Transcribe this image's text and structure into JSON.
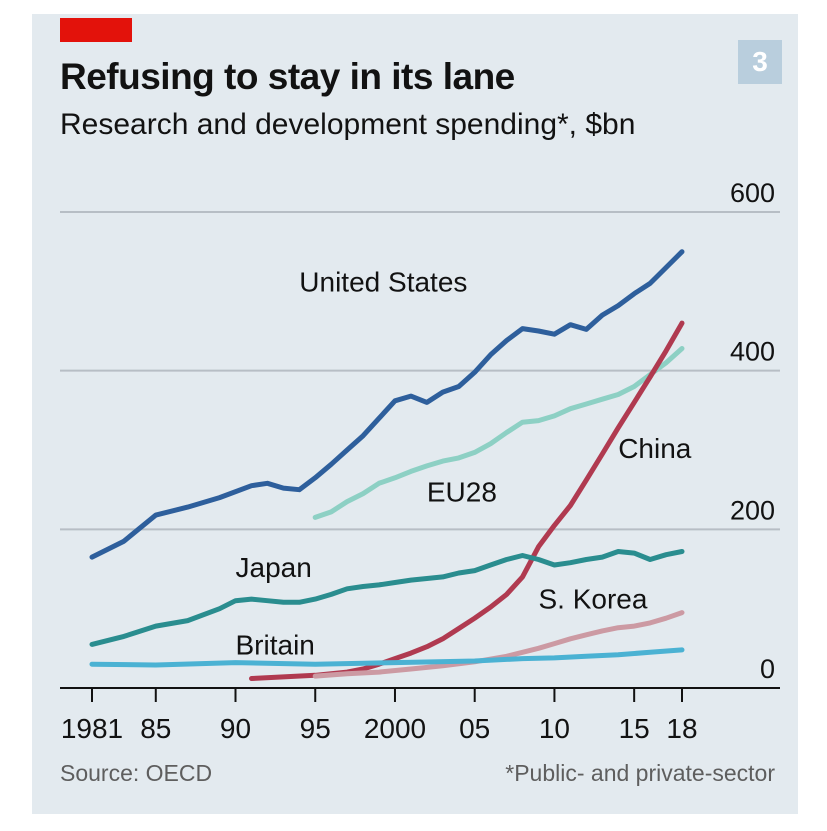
{
  "header": {
    "title": "Refusing to stay in its lane",
    "subtitle": "Research and development spending*, $bn",
    "badge": "3"
  },
  "footer": {
    "source": "Source: OECD",
    "note": "*Public- and private-sector"
  },
  "colors": {
    "background": "#e3eaef",
    "accent": "#e3120b",
    "gridline": "#b7bec5",
    "axis": "#121212"
  },
  "chart_data": {
    "type": "line",
    "title": "Refusing to stay in its lane",
    "subtitle": "Research and development spending*, $bn",
    "xlim": [
      1981,
      2018
    ],
    "ylim": [
      0,
      600
    ],
    "x_tick_values": [
      1981,
      1985,
      1990,
      1995,
      2000,
      2005,
      2010,
      2015,
      2018
    ],
    "x_tick_labels": [
      "1981",
      "85",
      "90",
      "95",
      "2000",
      "05",
      "10",
      "15",
      "18"
    ],
    "y_ticks": [
      0,
      200,
      400,
      600
    ],
    "grid": true,
    "y_axis_side": "right",
    "series": [
      {
        "name": "United States",
        "color": "#2e5f9c",
        "label_anchor": [
          1994,
          500
        ],
        "points": [
          [
            1981,
            165
          ],
          [
            1983,
            185
          ],
          [
            1985,
            218
          ],
          [
            1987,
            228
          ],
          [
            1989,
            240
          ],
          [
            1991,
            255
          ],
          [
            1992,
            258
          ],
          [
            1993,
            252
          ],
          [
            1994,
            250
          ],
          [
            1995,
            265
          ],
          [
            1996,
            282
          ],
          [
            1997,
            300
          ],
          [
            1998,
            318
          ],
          [
            1999,
            340
          ],
          [
            2000,
            362
          ],
          [
            2001,
            368
          ],
          [
            2002,
            360
          ],
          [
            2003,
            373
          ],
          [
            2004,
            380
          ],
          [
            2005,
            398
          ],
          [
            2006,
            420
          ],
          [
            2007,
            438
          ],
          [
            2008,
            453
          ],
          [
            2009,
            450
          ],
          [
            2010,
            446
          ],
          [
            2011,
            458
          ],
          [
            2012,
            452
          ],
          [
            2013,
            470
          ],
          [
            2014,
            482
          ],
          [
            2015,
            497
          ],
          [
            2016,
            510
          ],
          [
            2017,
            530
          ],
          [
            2018,
            550
          ]
        ]
      },
      {
        "name": "EU28",
        "color": "#8dd0c4",
        "label_anchor": [
          2002,
          235
        ],
        "points": [
          [
            1995,
            215
          ],
          [
            1996,
            222
          ],
          [
            1997,
            235
          ],
          [
            1998,
            245
          ],
          [
            1999,
            258
          ],
          [
            2000,
            265
          ],
          [
            2001,
            273
          ],
          [
            2002,
            280
          ],
          [
            2003,
            286
          ],
          [
            2004,
            290
          ],
          [
            2005,
            297
          ],
          [
            2006,
            308
          ],
          [
            2007,
            322
          ],
          [
            2008,
            335
          ],
          [
            2009,
            337
          ],
          [
            2010,
            343
          ],
          [
            2011,
            352
          ],
          [
            2012,
            358
          ],
          [
            2013,
            364
          ],
          [
            2014,
            370
          ],
          [
            2015,
            380
          ],
          [
            2016,
            395
          ],
          [
            2017,
            410
          ],
          [
            2018,
            428
          ]
        ]
      },
      {
        "name": "China",
        "color": "#b03a50",
        "label_anchor": [
          2014,
          290
        ],
        "points": [
          [
            1991,
            12
          ],
          [
            1993,
            14
          ],
          [
            1995,
            16
          ],
          [
            1997,
            20
          ],
          [
            1998,
            24
          ],
          [
            1999,
            30
          ],
          [
            2000,
            37
          ],
          [
            2001,
            44
          ],
          [
            2002,
            52
          ],
          [
            2003,
            62
          ],
          [
            2004,
            75
          ],
          [
            2005,
            88
          ],
          [
            2006,
            102
          ],
          [
            2007,
            118
          ],
          [
            2008,
            140
          ],
          [
            2009,
            178
          ],
          [
            2010,
            205
          ],
          [
            2011,
            230
          ],
          [
            2012,
            262
          ],
          [
            2013,
            295
          ],
          [
            2014,
            328
          ],
          [
            2015,
            360
          ],
          [
            2016,
            392
          ],
          [
            2017,
            425
          ],
          [
            2018,
            460
          ]
        ]
      },
      {
        "name": "Japan",
        "color": "#2a8d8f",
        "label_anchor": [
          1990,
          140
        ],
        "points": [
          [
            1981,
            55
          ],
          [
            1983,
            65
          ],
          [
            1985,
            78
          ],
          [
            1987,
            85
          ],
          [
            1989,
            100
          ],
          [
            1990,
            110
          ],
          [
            1991,
            112
          ],
          [
            1992,
            110
          ],
          [
            1993,
            108
          ],
          [
            1994,
            108
          ],
          [
            1995,
            112
          ],
          [
            1996,
            118
          ],
          [
            1997,
            125
          ],
          [
            1998,
            128
          ],
          [
            1999,
            130
          ],
          [
            2000,
            133
          ],
          [
            2001,
            136
          ],
          [
            2002,
            138
          ],
          [
            2003,
            140
          ],
          [
            2004,
            145
          ],
          [
            2005,
            148
          ],
          [
            2006,
            155
          ],
          [
            2007,
            162
          ],
          [
            2008,
            167
          ],
          [
            2009,
            162
          ],
          [
            2010,
            155
          ],
          [
            2011,
            158
          ],
          [
            2012,
            162
          ],
          [
            2013,
            165
          ],
          [
            2014,
            172
          ],
          [
            2015,
            170
          ],
          [
            2016,
            162
          ],
          [
            2017,
            168
          ],
          [
            2018,
            172
          ]
        ]
      },
      {
        "name": "S. Korea",
        "color": "#cc9aa3",
        "label_anchor": [
          2009,
          100
        ],
        "points": [
          [
            1995,
            15
          ],
          [
            1997,
            18
          ],
          [
            1999,
            20
          ],
          [
            2001,
            24
          ],
          [
            2003,
            28
          ],
          [
            2005,
            33
          ],
          [
            2007,
            40
          ],
          [
            2008,
            45
          ],
          [
            2009,
            50
          ],
          [
            2010,
            56
          ],
          [
            2011,
            62
          ],
          [
            2012,
            67
          ],
          [
            2013,
            72
          ],
          [
            2014,
            76
          ],
          [
            2015,
            78
          ],
          [
            2016,
            82
          ],
          [
            2017,
            88
          ],
          [
            2018,
            95
          ]
        ]
      },
      {
        "name": "Britain",
        "color": "#4bb2d3",
        "label_anchor": [
          1990,
          42
        ],
        "points": [
          [
            1981,
            30
          ],
          [
            1985,
            29
          ],
          [
            1990,
            32
          ],
          [
            1995,
            30
          ],
          [
            2000,
            32
          ],
          [
            2005,
            34
          ],
          [
            2008,
            37
          ],
          [
            2010,
            38
          ],
          [
            2012,
            40
          ],
          [
            2014,
            42
          ],
          [
            2016,
            45
          ],
          [
            2018,
            48
          ]
        ]
      }
    ]
  }
}
